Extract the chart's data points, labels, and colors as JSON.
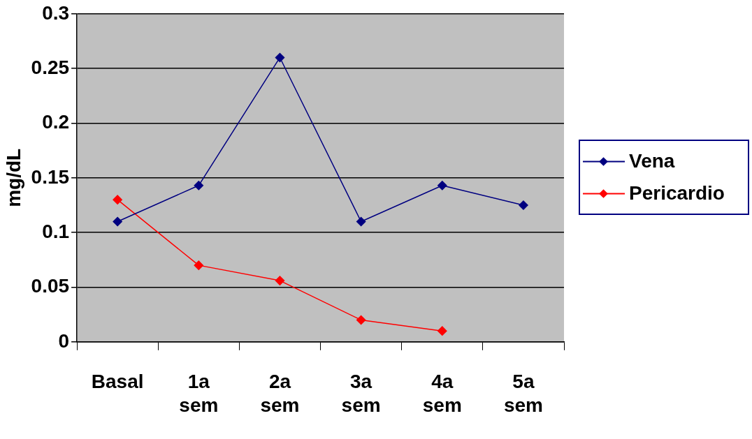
{
  "chart_data": {
    "type": "line",
    "ylabel": "mg/dL",
    "categories": [
      "Basal",
      "1a sem",
      "2a sem",
      "3a sem",
      "4a sem",
      "5a sem"
    ],
    "series": [
      {
        "name": "Vena",
        "color": "#000080",
        "values": [
          0.11,
          0.143,
          0.26,
          0.11,
          0.143,
          0.125
        ]
      },
      {
        "name": "Pericardio",
        "color": "#ff0000",
        "values": [
          0.13,
          0.07,
          0.056,
          0.02,
          0.01,
          null
        ]
      }
    ],
    "ylim": [
      0,
      0.3
    ],
    "yticks": [
      0,
      0.05,
      0.1,
      0.15,
      0.2,
      0.25,
      0.3
    ],
    "grid": "y",
    "legend": "right",
    "marker": "diamond",
    "line_style": "solid"
  }
}
